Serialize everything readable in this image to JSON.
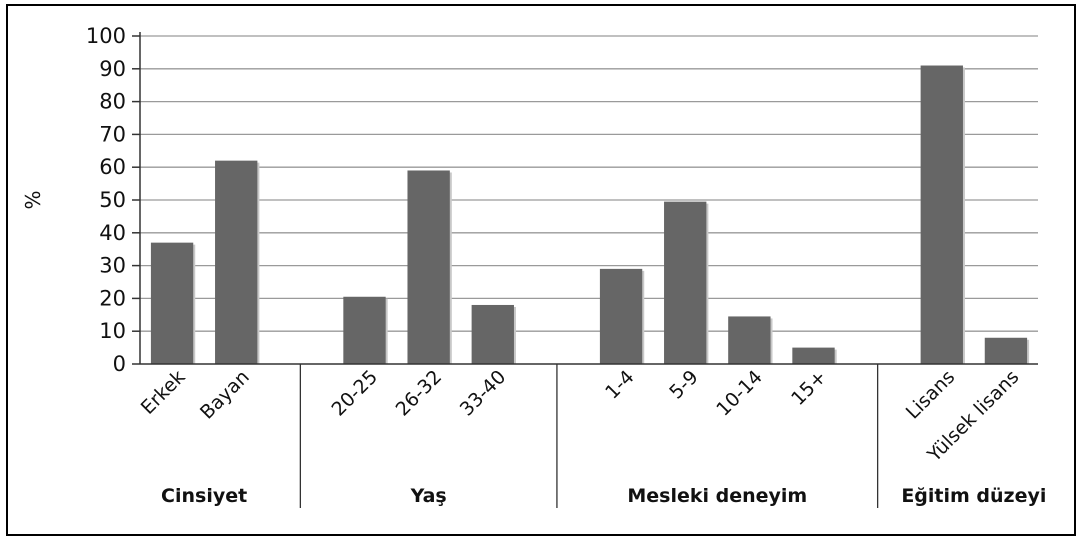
{
  "chart_data": {
    "type": "bar",
    "title": "",
    "ylabel": "%",
    "ylim": [
      0,
      100
    ],
    "yticks": [
      0,
      10,
      20,
      30,
      40,
      50,
      60,
      70,
      80,
      90,
      100
    ],
    "grid": true,
    "bar_color": "#666666",
    "groups": [
      {
        "name": "Cinsiyet",
        "categories": [
          "Erkek",
          "Bayan"
        ],
        "values": [
          37,
          62
        ]
      },
      {
        "name": "Yaş",
        "categories": [
          "20-25",
          "26-32",
          "33-40"
        ],
        "values": [
          20.5,
          59,
          18
        ]
      },
      {
        "name": "Mesleki deneyim",
        "categories": [
          "1-4",
          "5-9",
          "10-14",
          "15+"
        ],
        "values": [
          29,
          49.5,
          14.5,
          5
        ]
      },
      {
        "name": "Eğitim düzeyi",
        "categories": [
          "Lisans",
          "Yülsek lisans"
        ],
        "values": [
          91,
          8
        ]
      }
    ]
  }
}
